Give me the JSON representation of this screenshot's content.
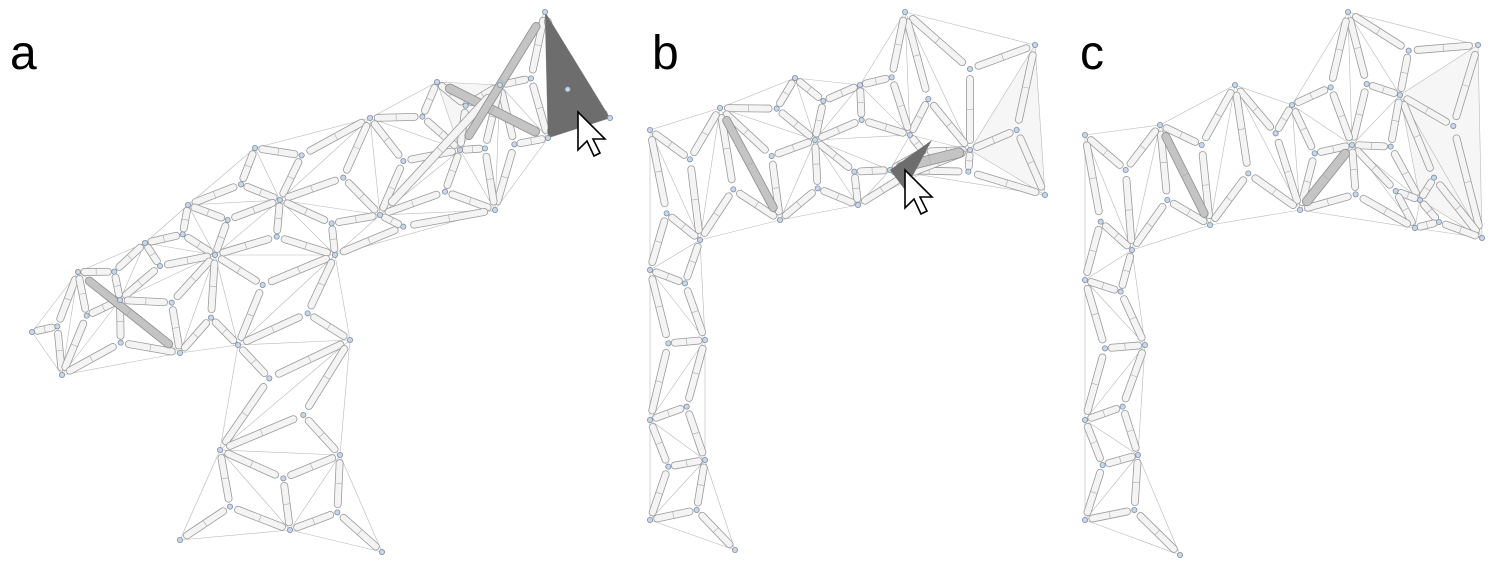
{
  "panels": [
    {
      "label": "a",
      "cursor": "arrow-cursor",
      "highlight": "selected-face"
    },
    {
      "label": "b",
      "cursor": "arrow-cursor",
      "highlight": "selected-face"
    },
    {
      "label": "c"
    }
  ],
  "colors": {
    "strut": "#f4f4f4",
    "strut_outline": "#9a9a9a",
    "node": "#c9d8e8",
    "selected_face": "#6d6d6d"
  }
}
